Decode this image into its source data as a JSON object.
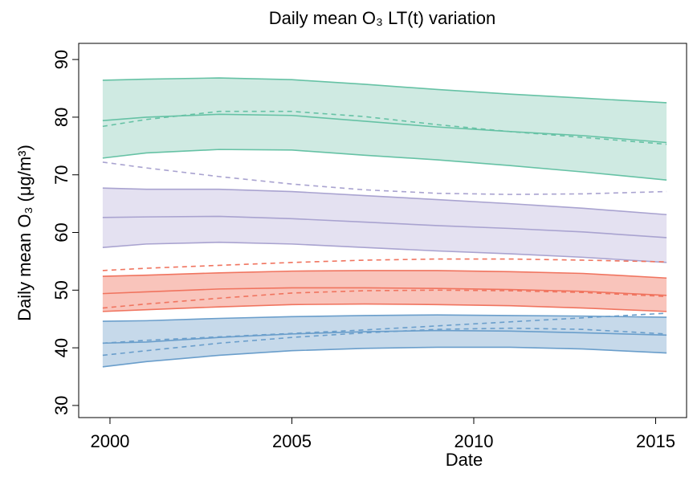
{
  "chart_data": {
    "type": "line",
    "title": "Daily mean O₃ LT(t) variation",
    "x_label": "Date",
    "y_label": "Daily mean O₃ (μg/m³)",
    "x": [
      1999.8,
      2001,
      2003,
      2005,
      2007,
      2009,
      2011,
      2013,
      2015.3
    ],
    "xlim": [
      1999.14,
      2015.85
    ],
    "xticks": [
      2000,
      2005,
      2010,
      2015
    ],
    "ylim": [
      27.9,
      92.8
    ],
    "yticks": [
      30,
      40,
      50,
      60,
      70,
      80,
      90
    ],
    "bands": [
      {
        "color": "#66c2a5",
        "fill": "#cfeae2",
        "lower": [
          72.9,
          73.8,
          74.4,
          74.3,
          73.4,
          72.6,
          71.6,
          70.5,
          69.1
        ],
        "upper": [
          86.4,
          86.6,
          86.8,
          86.5,
          85.7,
          84.8,
          84.0,
          83.3,
          82.5
        ]
      },
      {
        "color": "#a9a3d0",
        "fill": "#e4e1f1",
        "lower": [
          57.4,
          58.0,
          58.3,
          58.0,
          57.4,
          56.8,
          56.3,
          55.7,
          54.8
        ],
        "upper": [
          67.7,
          67.5,
          67.5,
          67.1,
          66.4,
          65.7,
          65.0,
          64.2,
          63.1
        ]
      },
      {
        "color": "#f0745f",
        "fill": "#f9c4bb",
        "lower": [
          46.3,
          46.6,
          47.1,
          47.5,
          47.6,
          47.5,
          47.3,
          46.9,
          46.3
        ],
        "upper": [
          52.4,
          52.6,
          53.0,
          53.3,
          53.4,
          53.4,
          53.2,
          52.9,
          52.1
        ]
      },
      {
        "color": "#6a9ecb",
        "fill": "#c6d9ea",
        "lower": [
          36.7,
          37.6,
          38.7,
          39.5,
          39.9,
          40.1,
          40.1,
          39.8,
          39.1
        ],
        "upper": [
          44.6,
          44.7,
          45.1,
          45.4,
          45.6,
          45.7,
          45.6,
          45.5,
          45.3
        ]
      }
    ],
    "series": [
      {
        "color": "#66c2a5",
        "dashed": false,
        "values": [
          79.4,
          80.0,
          80.5,
          80.3,
          79.3,
          78.3,
          77.5,
          76.8,
          75.6
        ]
      },
      {
        "color": "#66c2a5",
        "dashed": true,
        "values": [
          78.4,
          79.6,
          81.0,
          81.0,
          80.1,
          78.7,
          77.5,
          76.5,
          75.3
        ]
      },
      {
        "color": "#a9a3d0",
        "dashed": false,
        "values": [
          62.6,
          62.7,
          62.8,
          62.4,
          61.8,
          61.2,
          60.7,
          60.1,
          59.1
        ]
      },
      {
        "color": "#a9a3d0",
        "dashed": true,
        "values": [
          72.2,
          71.2,
          69.7,
          68.4,
          67.4,
          66.8,
          66.6,
          66.7,
          67.1
        ]
      },
      {
        "color": "#f0745f",
        "dashed": false,
        "values": [
          49.4,
          49.7,
          50.2,
          50.4,
          50.4,
          50.3,
          50.1,
          49.8,
          49.1
        ]
      },
      {
        "color": "#f0745f",
        "dashed": true,
        "values": [
          53.4,
          53.8,
          54.3,
          54.8,
          55.2,
          55.4,
          55.4,
          55.2,
          54.9
        ]
      },
      {
        "color": "#f0745f",
        "dashed": true,
        "values": [
          46.9,
          47.6,
          48.6,
          49.5,
          49.9,
          50.0,
          49.9,
          49.6,
          48.9
        ]
      },
      {
        "color": "#6a9ecb",
        "dashed": false,
        "values": [
          40.8,
          41.0,
          41.8,
          42.4,
          42.8,
          43.0,
          42.9,
          42.6,
          42.2
        ]
      },
      {
        "color": "#6a9ecb",
        "dashed": true,
        "values": [
          40.8,
          41.3,
          41.9,
          42.5,
          43.1,
          43.8,
          44.5,
          45.2,
          46.0
        ]
      },
      {
        "color": "#6a9ecb",
        "dashed": true,
        "values": [
          38.7,
          39.5,
          40.8,
          41.8,
          42.6,
          43.2,
          43.4,
          43.2,
          42.4
        ]
      }
    ]
  }
}
